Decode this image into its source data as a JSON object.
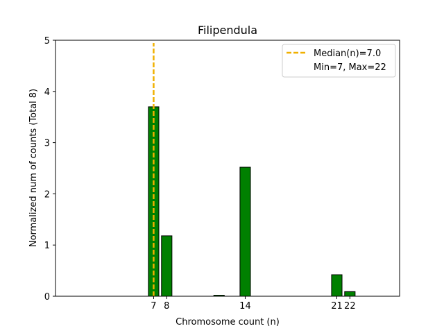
{
  "chart_data": {
    "type": "bar",
    "title": "Filipendula",
    "xlabel": "Chromosome count (n)",
    "ylabel": "Normalized num of counts     (Total 8)",
    "xlim": [
      -0.5,
      25.8
    ],
    "ylim": [
      0,
      5
    ],
    "x_ticks": [
      {
        "value": 7,
        "label": "7"
      },
      {
        "value": 8,
        "label": "8"
      },
      {
        "value": 14,
        "label": "14"
      },
      {
        "value": 21,
        "label": "21"
      },
      {
        "value": 22,
        "label": "22"
      }
    ],
    "y_ticks": [
      {
        "value": 0,
        "label": "0"
      },
      {
        "value": 1,
        "label": "1"
      },
      {
        "value": 2,
        "label": "2"
      },
      {
        "value": 3,
        "label": "3"
      },
      {
        "value": 4,
        "label": "4"
      },
      {
        "value": 5,
        "label": "5"
      }
    ],
    "bars": [
      {
        "x": 7,
        "value": 3.7
      },
      {
        "x": 8,
        "value": 1.18
      },
      {
        "x": 12,
        "value": 0.02
      },
      {
        "x": 14,
        "value": 2.52
      },
      {
        "x": 21,
        "value": 0.42
      },
      {
        "x": 22,
        "value": 0.09
      }
    ],
    "bar_width": 0.8,
    "bar_color": "#008000",
    "bar_edge_color": "#000000",
    "median": {
      "x": 7.0,
      "color": "#f0b000"
    },
    "legend": {
      "position": "top-right",
      "entries": [
        "Median(n)=7.0",
        "Min=7, Max=22"
      ]
    },
    "grid": false
  }
}
